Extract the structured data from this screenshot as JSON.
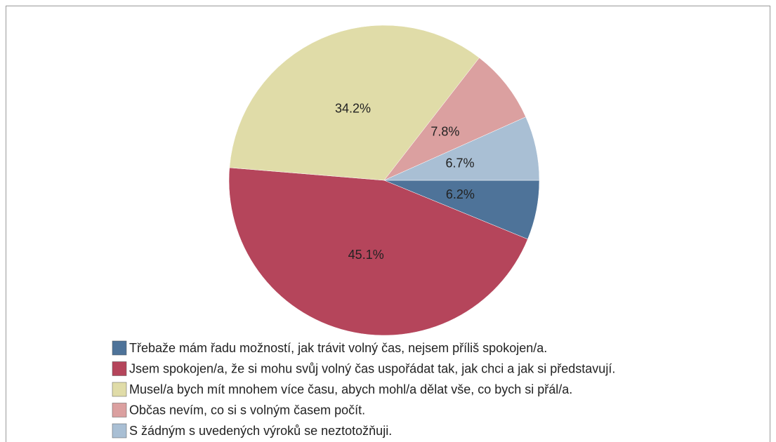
{
  "chart_data": {
    "type": "pie",
    "categories": [
      "Třebaže mám řadu možností, jak trávit volný čas, nejsem příliš spokojen/a.",
      "Jsem spokojen/a, že si mohu svůj volný čas uspořádat tak, jak chci a jak si představují.",
      "Musel/a bych mít mnohem více času, abych mohl/a dělat vše, co bych si přál/a.",
      "Občas nevím, co si s volným časem počít.",
      "S žádným s uvedených výroků se neztotožňuji."
    ],
    "values": [
      6.2,
      45.1,
      34.2,
      7.8,
      6.7
    ],
    "value_labels": [
      "6.2%",
      "45.1%",
      "34.2%",
      "7.8%",
      "6.7%"
    ],
    "colors": [
      "#4e7399",
      "#b5455b",
      "#e0dca8",
      "#dba0a0",
      "#a9bfd4"
    ]
  }
}
